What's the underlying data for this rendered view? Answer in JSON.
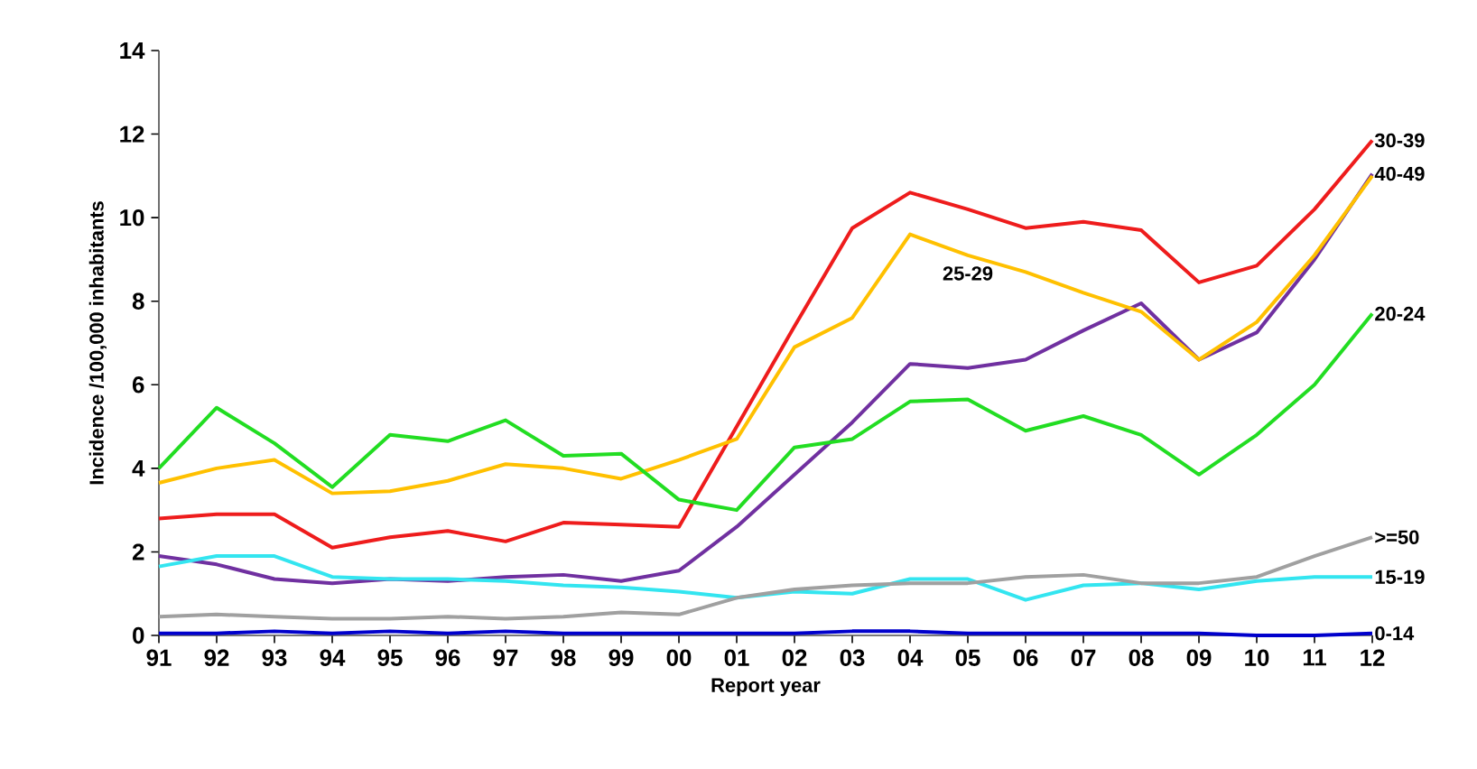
{
  "chart_data": {
    "type": "line",
    "xlabel": "Report year",
    "ylabel": "Incidence /100,000 inhabitants",
    "categories": [
      "91",
      "92",
      "93",
      "94",
      "95",
      "96",
      "97",
      "98",
      "99",
      "00",
      "01",
      "02",
      "03",
      "04",
      "05",
      "06",
      "07",
      "08",
      "09",
      "10",
      "11",
      "12"
    ],
    "ylim": [
      0,
      14
    ],
    "yticks": [
      0,
      2,
      4,
      6,
      8,
      10,
      12,
      14
    ],
    "grid": false,
    "legend": false,
    "marker": "none",
    "line_style": "solid",
    "series": [
      {
        "name": "30-39",
        "color": "#ee1c1c",
        "values": [
          2.8,
          2.9,
          2.9,
          2.1,
          2.35,
          2.5,
          2.25,
          2.7,
          2.65,
          2.6,
          5.0,
          7.4,
          9.75,
          10.6,
          10.2,
          9.75,
          9.9,
          9.7,
          8.45,
          8.85,
          10.2,
          11.85
        ]
      },
      {
        "name": "40-49",
        "color": "#7030a0",
        "values": [
          1.9,
          1.7,
          1.35,
          1.25,
          1.35,
          1.3,
          1.4,
          1.45,
          1.3,
          1.55,
          2.6,
          3.85,
          5.1,
          6.5,
          6.4,
          6.6,
          7.3,
          7.95,
          6.6,
          7.25,
          9.0,
          11.05
        ]
      },
      {
        "name": "25-29",
        "color": "#ffc000",
        "values": [
          3.65,
          4.0,
          4.2,
          3.4,
          3.45,
          3.7,
          4.1,
          4.0,
          3.75,
          4.2,
          4.7,
          6.9,
          7.6,
          9.6,
          9.1,
          8.7,
          8.2,
          7.75,
          6.6,
          7.5,
          9.1,
          11.0
        ]
      },
      {
        "name": "20-24",
        "color": "#22dd22",
        "values": [
          4.0,
          5.45,
          4.6,
          3.55,
          4.8,
          4.65,
          5.15,
          4.3,
          4.35,
          3.25,
          3.0,
          4.5,
          4.7,
          5.6,
          5.65,
          4.9,
          5.25,
          4.8,
          3.85,
          4.8,
          6.0,
          7.7
        ]
      },
      {
        "name": "15-19",
        "color": "#33e5f0",
        "values": [
          1.65,
          1.9,
          1.9,
          1.4,
          1.35,
          1.35,
          1.3,
          1.2,
          1.15,
          1.05,
          0.9,
          1.05,
          1.0,
          1.35,
          1.35,
          0.85,
          1.2,
          1.25,
          1.1,
          1.3,
          1.4,
          1.4
        ]
      },
      {
        "name": ">=50",
        "color": "#a0a0a0",
        "values": [
          0.45,
          0.5,
          0.45,
          0.4,
          0.4,
          0.45,
          0.4,
          0.45,
          0.55,
          0.5,
          0.9,
          1.1,
          1.2,
          1.25,
          1.25,
          1.4,
          1.45,
          1.25,
          1.25,
          1.4,
          1.9,
          2.35
        ]
      },
      {
        "name": "0-14",
        "color": "#0000cc",
        "values": [
          0.05,
          0.05,
          0.1,
          0.05,
          0.1,
          0.05,
          0.1,
          0.05,
          0.05,
          0.05,
          0.05,
          0.05,
          0.1,
          0.1,
          0.05,
          0.05,
          0.05,
          0.05,
          0.05,
          0,
          0,
          0.05
        ]
      }
    ]
  }
}
